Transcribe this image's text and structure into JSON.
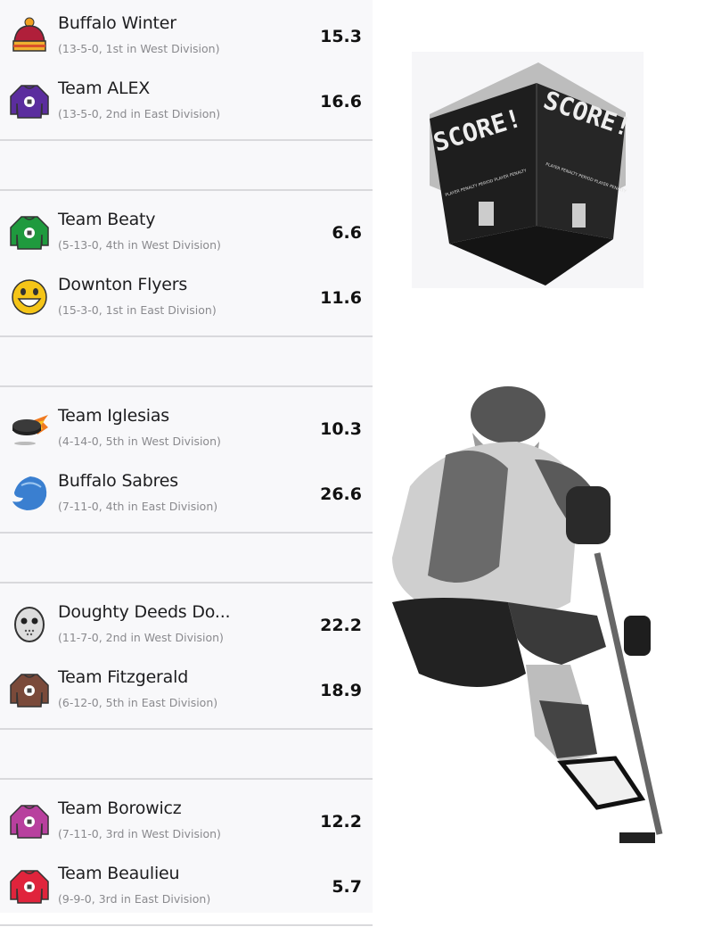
{
  "matchups": [
    {
      "teams": [
        {
          "name": "Buffalo Winter",
          "record": "(13-5-0, 1st in West Division)",
          "score": "15.3",
          "icon": "winter-hat",
          "color": "#b01f3a"
        },
        {
          "name": "Team ALEX",
          "record": "(13-5-0, 2nd in East Division)",
          "score": "16.6",
          "icon": "jersey",
          "color": "#5b2d9e"
        }
      ]
    },
    {
      "teams": [
        {
          "name": "Team Beaty",
          "record": "(5-13-0, 4th in West Division)",
          "score": "6.6",
          "icon": "jersey",
          "color": "#1f9a3e"
        },
        {
          "name": "Downton Flyers",
          "record": "(15-3-0, 1st in East Division)",
          "score": "11.6",
          "icon": "grinning-face",
          "color": "#f5c518"
        }
      ]
    },
    {
      "teams": [
        {
          "name": "Team Iglesias",
          "record": "(4-14-0, 5th in West Division)",
          "score": "10.3",
          "icon": "flaming-puck",
          "color": "#222222"
        },
        {
          "name": "Buffalo Sabres",
          "record": "(7-11-0, 4th in East Division)",
          "score": "26.6",
          "icon": "sabres-logo",
          "color": "#3a7fd0"
        }
      ]
    },
    {
      "teams": [
        {
          "name": "Doughty Deeds Do...",
          "record": "(11-7-0, 2nd in West Division)",
          "score": "22.2",
          "icon": "goalie-mask",
          "color": "#dddddd"
        },
        {
          "name": "Team Fitzgerald",
          "record": "(6-12-0, 5th in East Division)",
          "score": "18.9",
          "icon": "jersey",
          "color": "#7a4a3a"
        }
      ]
    },
    {
      "teams": [
        {
          "name": "Team Borowicz",
          "record": "(7-11-0, 3rd in West Division)",
          "score": "12.2",
          "icon": "jersey",
          "color": "#b8409e"
        },
        {
          "name": "Team Beaulieu",
          "record": "(9-9-0, 3rd in East Division)",
          "score": "5.7",
          "icon": "jersey",
          "color": "#e0243c"
        }
      ]
    }
  ],
  "scoreboard": {
    "headline": "SCORE!",
    "labels": [
      "PLAYER",
      "PENALTY",
      "PERIOD",
      "PLAYER",
      "PENALTY"
    ]
  }
}
